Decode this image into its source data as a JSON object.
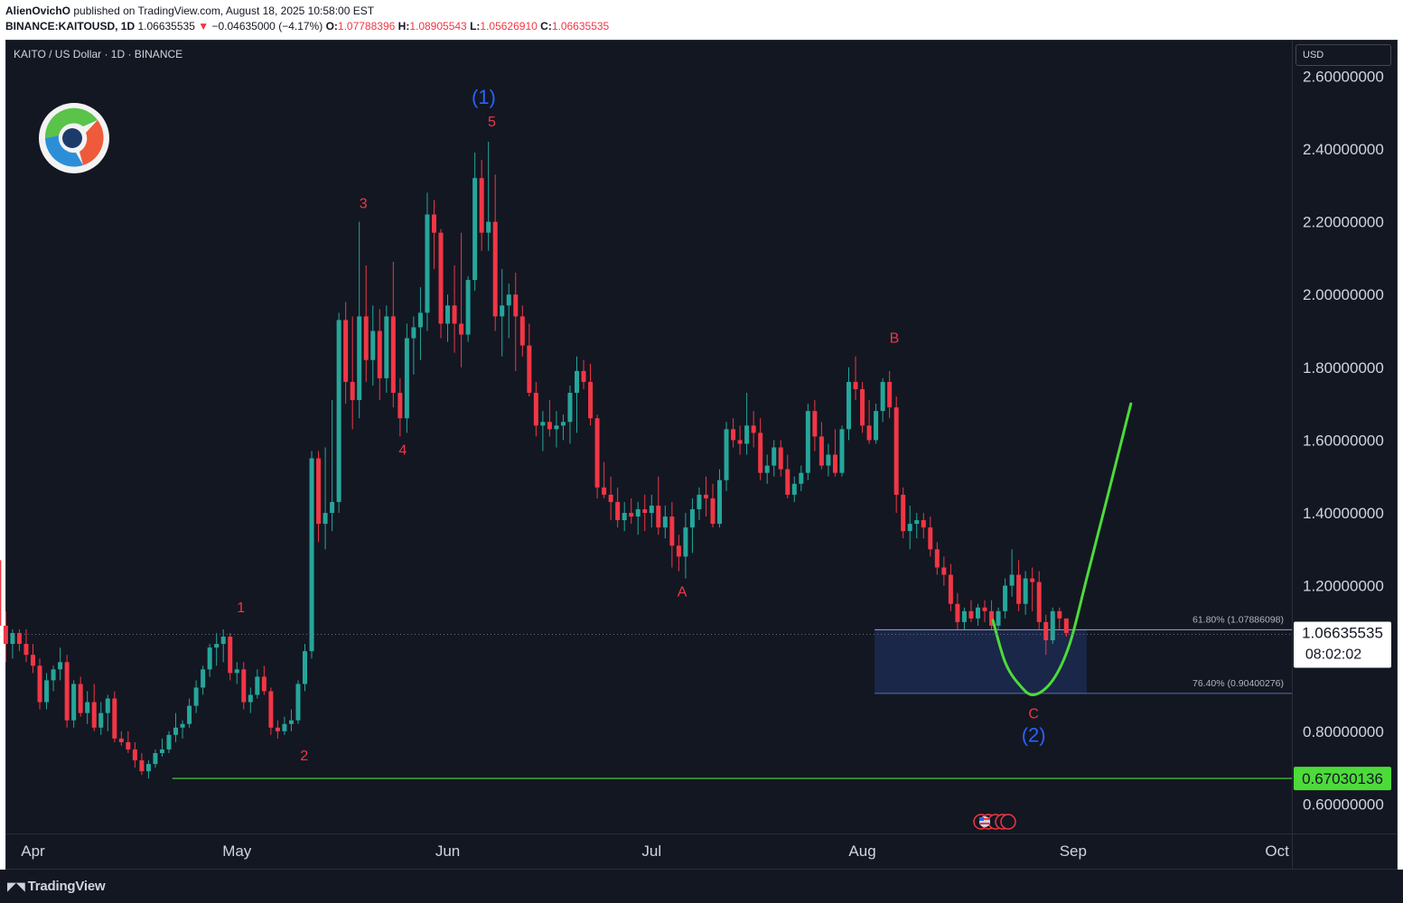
{
  "header": {
    "author": "AlienOvichO",
    "published_text": "published on TradingView.com, August 18, 2025 10:58:00 EST",
    "symbol": "BINANCE:KAITOUSD, 1D",
    "last": "1.06635535",
    "arrow": "▼",
    "change": "−0.04635000 (−4.17%)",
    "ohlc": {
      "o_label": "O:",
      "o": "1.07788396",
      "h_label": "H:",
      "h": "1.08905543",
      "l_label": "L:",
      "l": "1.05626910",
      "c_label": "C:",
      "c": "1.06635535"
    }
  },
  "pane": {
    "legend": "KAITO / US Dollar · 1D · BINANCE",
    "currency_button": "USD"
  },
  "footer": {
    "brand": "TradingView",
    "brand_icon": "tradingview-logo-icon"
  },
  "colors": {
    "background": "#131722",
    "up": "#26a69a",
    "down": "#f23645",
    "wave_minor": "#f23645",
    "wave_major": "#2962ff",
    "projection": "#4cdb3a",
    "support": "#4cdb3a",
    "zone_fill": "#1c2a4f",
    "zone_border": "#5b6ea8"
  },
  "chart_data": {
    "type": "candlestick",
    "title": "KAITO / US Dollar · 1D · BINANCE",
    "x_axis": {
      "start_date": "2025-03-27",
      "ticks": [
        {
          "label": "Apr",
          "day": 5
        },
        {
          "label": "May",
          "day": 35
        },
        {
          "label": "Jun",
          "day": 66
        },
        {
          "label": "Jul",
          "day": 96
        },
        {
          "label": "Aug",
          "day": 127
        },
        {
          "label": "Sep",
          "day": 158
        },
        {
          "label": "Oct",
          "day": 188
        }
      ]
    },
    "y_axis": {
      "range": [
        0.53,
        2.66
      ],
      "ticks": [
        "2.60000000",
        "2.40000000",
        "2.20000000",
        "2.00000000",
        "1.80000000",
        "1.60000000",
        "1.40000000",
        "1.20000000",
        "0.80000000",
        "0.60000000"
      ],
      "tick_values": [
        2.6,
        2.4,
        2.2,
        2.0,
        1.8,
        1.6,
        1.4,
        1.2,
        0.8,
        0.6
      ]
    },
    "candles": [
      [
        1.27,
        1.27,
        1.09,
        1.09
      ],
      [
        1.09,
        1.13,
        0.99,
        1.04
      ],
      [
        1.04,
        1.08,
        1.0,
        1.07
      ],
      [
        1.07,
        1.08,
        1.02,
        1.04
      ],
      [
        1.04,
        1.08,
        0.99,
        1.01
      ],
      [
        1.01,
        1.04,
        0.96,
        0.98
      ],
      [
        0.98,
        1.0,
        0.86,
        0.88
      ],
      [
        0.88,
        0.96,
        0.86,
        0.94
      ],
      [
        0.94,
        0.98,
        0.91,
        0.97
      ],
      [
        0.97,
        1.03,
        0.94,
        0.99
      ],
      [
        0.99,
        1.01,
        0.81,
        0.83
      ],
      [
        0.83,
        0.94,
        0.81,
        0.93
      ],
      [
        0.93,
        0.95,
        0.84,
        0.85
      ],
      [
        0.85,
        0.91,
        0.82,
        0.88
      ],
      [
        0.88,
        0.93,
        0.8,
        0.81
      ],
      [
        0.81,
        0.88,
        0.79,
        0.85
      ],
      [
        0.85,
        0.9,
        0.8,
        0.89
      ],
      [
        0.89,
        0.91,
        0.77,
        0.78
      ],
      [
        0.78,
        0.8,
        0.76,
        0.77
      ],
      [
        0.77,
        0.8,
        0.74,
        0.75
      ],
      [
        0.75,
        0.77,
        0.7,
        0.72
      ],
      [
        0.72,
        0.74,
        0.68,
        0.69
      ],
      [
        0.69,
        0.72,
        0.67,
        0.71
      ],
      [
        0.71,
        0.75,
        0.7,
        0.74
      ],
      [
        0.74,
        0.78,
        0.73,
        0.75
      ],
      [
        0.75,
        0.8,
        0.74,
        0.79
      ],
      [
        0.79,
        0.85,
        0.77,
        0.81
      ],
      [
        0.81,
        0.83,
        0.78,
        0.82
      ],
      [
        0.82,
        0.89,
        0.81,
        0.87
      ],
      [
        0.87,
        0.94,
        0.85,
        0.92
      ],
      [
        0.92,
        0.98,
        0.9,
        0.97
      ],
      [
        0.97,
        1.04,
        0.95,
        1.03
      ],
      [
        1.03,
        1.07,
        0.98,
        1.04
      ],
      [
        1.04,
        1.08,
        0.99,
        1.06
      ],
      [
        1.06,
        1.07,
        0.94,
        0.96
      ],
      [
        0.96,
        0.99,
        0.93,
        0.97
      ],
      [
        0.97,
        0.99,
        0.86,
        0.88
      ],
      [
        0.88,
        0.92,
        0.85,
        0.9
      ],
      [
        0.9,
        0.97,
        0.89,
        0.95
      ],
      [
        0.95,
        0.98,
        0.9,
        0.91
      ],
      [
        0.91,
        0.92,
        0.79,
        0.81
      ],
      [
        0.81,
        0.83,
        0.78,
        0.8
      ],
      [
        0.8,
        0.84,
        0.79,
        0.82
      ],
      [
        0.82,
        0.86,
        0.8,
        0.83
      ],
      [
        0.83,
        0.94,
        0.82,
        0.93
      ],
      [
        0.93,
        1.04,
        0.91,
        1.02
      ],
      [
        1.02,
        1.57,
        1.0,
        1.55
      ],
      [
        1.55,
        1.57,
        1.32,
        1.37
      ],
      [
        1.37,
        1.58,
        1.3,
        1.4
      ],
      [
        1.4,
        1.71,
        1.35,
        1.43
      ],
      [
        1.43,
        1.95,
        1.4,
        1.93
      ],
      [
        1.93,
        1.98,
        1.7,
        1.76
      ],
      [
        1.76,
        1.94,
        1.63,
        1.71
      ],
      [
        1.71,
        2.2,
        1.66,
        1.94
      ],
      [
        1.94,
        2.08,
        1.76,
        1.82
      ],
      [
        1.82,
        1.97,
        1.75,
        1.9
      ],
      [
        1.9,
        1.96,
        1.71,
        1.77
      ],
      [
        1.77,
        1.97,
        1.73,
        1.94
      ],
      [
        1.94,
        2.09,
        1.69,
        1.73
      ],
      [
        1.73,
        1.77,
        1.61,
        1.66
      ],
      [
        1.66,
        1.92,
        1.62,
        1.88
      ],
      [
        1.88,
        1.94,
        1.78,
        1.91
      ],
      [
        1.91,
        2.02,
        1.82,
        1.95
      ],
      [
        1.95,
        2.28,
        1.9,
        2.22
      ],
      [
        2.22,
        2.26,
        2.07,
        2.17
      ],
      [
        2.17,
        2.18,
        1.88,
        1.92
      ],
      [
        1.92,
        2.0,
        1.87,
        1.97
      ],
      [
        1.97,
        2.08,
        1.84,
        1.92
      ],
      [
        1.92,
        2.17,
        1.8,
        1.89
      ],
      [
        1.89,
        2.05,
        1.87,
        2.04
      ],
      [
        2.04,
        2.39,
        2.01,
        2.32
      ],
      [
        2.32,
        2.37,
        2.12,
        2.17
      ],
      [
        2.17,
        2.42,
        2.12,
        2.2
      ],
      [
        2.2,
        2.33,
        1.9,
        1.94
      ],
      [
        1.94,
        2.07,
        1.83,
        1.97
      ],
      [
        1.97,
        2.03,
        1.88,
        2.0
      ],
      [
        2.0,
        2.06,
        1.79,
        1.94
      ],
      [
        1.94,
        1.97,
        1.83,
        1.86
      ],
      [
        1.86,
        1.92,
        1.72,
        1.73
      ],
      [
        1.73,
        1.76,
        1.61,
        1.64
      ],
      [
        1.64,
        1.68,
        1.57,
        1.65
      ],
      [
        1.65,
        1.71,
        1.61,
        1.63
      ],
      [
        1.63,
        1.68,
        1.58,
        1.64
      ],
      [
        1.64,
        1.67,
        1.6,
        1.65
      ],
      [
        1.65,
        1.75,
        1.59,
        1.73
      ],
      [
        1.73,
        1.83,
        1.62,
        1.79
      ],
      [
        1.79,
        1.82,
        1.74,
        1.76
      ],
      [
        1.76,
        1.81,
        1.64,
        1.66
      ],
      [
        1.66,
        1.67,
        1.44,
        1.47
      ],
      [
        1.47,
        1.54,
        1.44,
        1.45
      ],
      [
        1.45,
        1.5,
        1.38,
        1.43
      ],
      [
        1.43,
        1.47,
        1.36,
        1.38
      ],
      [
        1.38,
        1.43,
        1.35,
        1.4
      ],
      [
        1.4,
        1.44,
        1.37,
        1.39
      ],
      [
        1.39,
        1.43,
        1.34,
        1.41
      ],
      [
        1.41,
        1.45,
        1.35,
        1.4
      ],
      [
        1.4,
        1.45,
        1.36,
        1.42
      ],
      [
        1.42,
        1.5,
        1.34,
        1.36
      ],
      [
        1.36,
        1.42,
        1.33,
        1.39
      ],
      [
        1.39,
        1.43,
        1.25,
        1.31
      ],
      [
        1.31,
        1.34,
        1.24,
        1.28
      ],
      [
        1.28,
        1.4,
        1.22,
        1.36
      ],
      [
        1.36,
        1.44,
        1.29,
        1.41
      ],
      [
        1.41,
        1.47,
        1.38,
        1.45
      ],
      [
        1.45,
        1.5,
        1.39,
        1.44
      ],
      [
        1.44,
        1.48,
        1.36,
        1.37
      ],
      [
        1.37,
        1.52,
        1.36,
        1.49
      ],
      [
        1.49,
        1.65,
        1.46,
        1.63
      ],
      [
        1.63,
        1.66,
        1.58,
        1.6
      ],
      [
        1.6,
        1.64,
        1.56,
        1.59
      ],
      [
        1.59,
        1.73,
        1.56,
        1.64
      ],
      [
        1.64,
        1.68,
        1.58,
        1.62
      ],
      [
        1.62,
        1.66,
        1.49,
        1.51
      ],
      [
        1.51,
        1.56,
        1.48,
        1.53
      ],
      [
        1.53,
        1.6,
        1.5,
        1.58
      ],
      [
        1.58,
        1.6,
        1.5,
        1.52
      ],
      [
        1.52,
        1.56,
        1.44,
        1.45
      ],
      [
        1.45,
        1.5,
        1.43,
        1.48
      ],
      [
        1.48,
        1.53,
        1.46,
        1.51
      ],
      [
        1.51,
        1.7,
        1.49,
        1.68
      ],
      [
        1.68,
        1.71,
        1.57,
        1.61
      ],
      [
        1.61,
        1.65,
        1.52,
        1.53
      ],
      [
        1.53,
        1.59,
        1.5,
        1.56
      ],
      [
        1.56,
        1.63,
        1.5,
        1.51
      ],
      [
        1.51,
        1.64,
        1.5,
        1.63
      ],
      [
        1.63,
        1.8,
        1.6,
        1.76
      ],
      [
        1.76,
        1.83,
        1.71,
        1.74
      ],
      [
        1.74,
        1.76,
        1.62,
        1.64
      ],
      [
        1.64,
        1.71,
        1.59,
        1.6
      ],
      [
        1.6,
        1.7,
        1.59,
        1.68
      ],
      [
        1.68,
        1.77,
        1.65,
        1.76
      ],
      [
        1.76,
        1.79,
        1.66,
        1.69
      ],
      [
        1.69,
        1.72,
        1.4,
        1.45
      ],
      [
        1.45,
        1.47,
        1.33,
        1.35
      ],
      [
        1.35,
        1.42,
        1.3,
        1.37
      ],
      [
        1.37,
        1.4,
        1.33,
        1.38
      ],
      [
        1.38,
        1.4,
        1.33,
        1.36
      ],
      [
        1.36,
        1.39,
        1.28,
        1.3
      ],
      [
        1.3,
        1.32,
        1.23,
        1.25
      ],
      [
        1.25,
        1.28,
        1.2,
        1.23
      ],
      [
        1.23,
        1.26,
        1.13,
        1.15
      ],
      [
        1.15,
        1.18,
        1.08,
        1.1
      ],
      [
        1.1,
        1.14,
        1.08,
        1.13
      ],
      [
        1.13,
        1.16,
        1.1,
        1.11
      ],
      [
        1.11,
        1.15,
        1.09,
        1.14
      ],
      [
        1.14,
        1.16,
        1.1,
        1.13
      ],
      [
        1.13,
        1.16,
        1.08,
        1.09
      ],
      [
        1.09,
        1.14,
        1.08,
        1.13
      ],
      [
        1.13,
        1.22,
        1.11,
        1.2
      ],
      [
        1.2,
        1.3,
        1.17,
        1.23
      ],
      [
        1.23,
        1.27,
        1.13,
        1.15
      ],
      [
        1.15,
        1.24,
        1.12,
        1.22
      ],
      [
        1.22,
        1.25,
        1.13,
        1.21
      ],
      [
        1.21,
        1.24,
        1.08,
        1.1
      ],
      [
        1.1,
        1.12,
        1.01,
        1.05
      ],
      [
        1.05,
        1.14,
        1.04,
        1.13
      ],
      [
        1.13,
        1.14,
        1.08,
        1.11
      ],
      [
        1.11,
        1.09,
        1.06,
        1.07
      ]
    ],
    "fib_levels": [
      {
        "label": "61.80% (1.07886098)",
        "value": 1.07886098
      },
      {
        "label": "76.40% (0.90400276)",
        "value": 0.90400276
      }
    ],
    "support_line": {
      "value": 0.67030136,
      "label": "0.67030136"
    },
    "last_price": {
      "value": 1.06635535,
      "label": "1.06635535",
      "countdown": "08:02:02"
    },
    "projection": [
      {
        "day": 146.2,
        "price": 1.105
      },
      {
        "day": 148,
        "price": 0.99
      },
      {
        "day": 150,
        "price": 0.93
      },
      {
        "day": 152.2,
        "price": 0.9
      },
      {
        "day": 155,
        "price": 0.94
      },
      {
        "day": 157.5,
        "price": 1.04
      },
      {
        "day": 160,
        "price": 1.22
      },
      {
        "day": 163,
        "price": 1.44
      },
      {
        "day": 166.5,
        "price": 1.7
      }
    ],
    "wave_labels": [
      {
        "text": "1",
        "day": 35.6,
        "price": 1.09,
        "kind": "minor"
      },
      {
        "text": "2",
        "day": 44.9,
        "price": 0.77,
        "kind": "minor",
        "below": true
      },
      {
        "text": "3",
        "day": 53.6,
        "price": 2.2,
        "kind": "minor"
      },
      {
        "text": "4",
        "day": 59.4,
        "price": 1.61,
        "kind": "minor",
        "below": true
      },
      {
        "text": "5",
        "day": 72.5,
        "price": 2.42,
        "kind": "minor"
      },
      {
        "text": "(1)",
        "day": 71.3,
        "price": 2.42,
        "kind": "major"
      },
      {
        "text": "A",
        "day": 100.5,
        "price": 1.22,
        "kind": "minor",
        "below": true
      },
      {
        "text": "B",
        "day": 131.7,
        "price": 1.83,
        "kind": "minor"
      },
      {
        "text": "C",
        "day": 152.2,
        "price": 0.9,
        "kind": "minor",
        "below": true
      },
      {
        "text": "(2)",
        "day": 152.2,
        "price": 0.84,
        "kind": "major",
        "below": true
      }
    ]
  }
}
